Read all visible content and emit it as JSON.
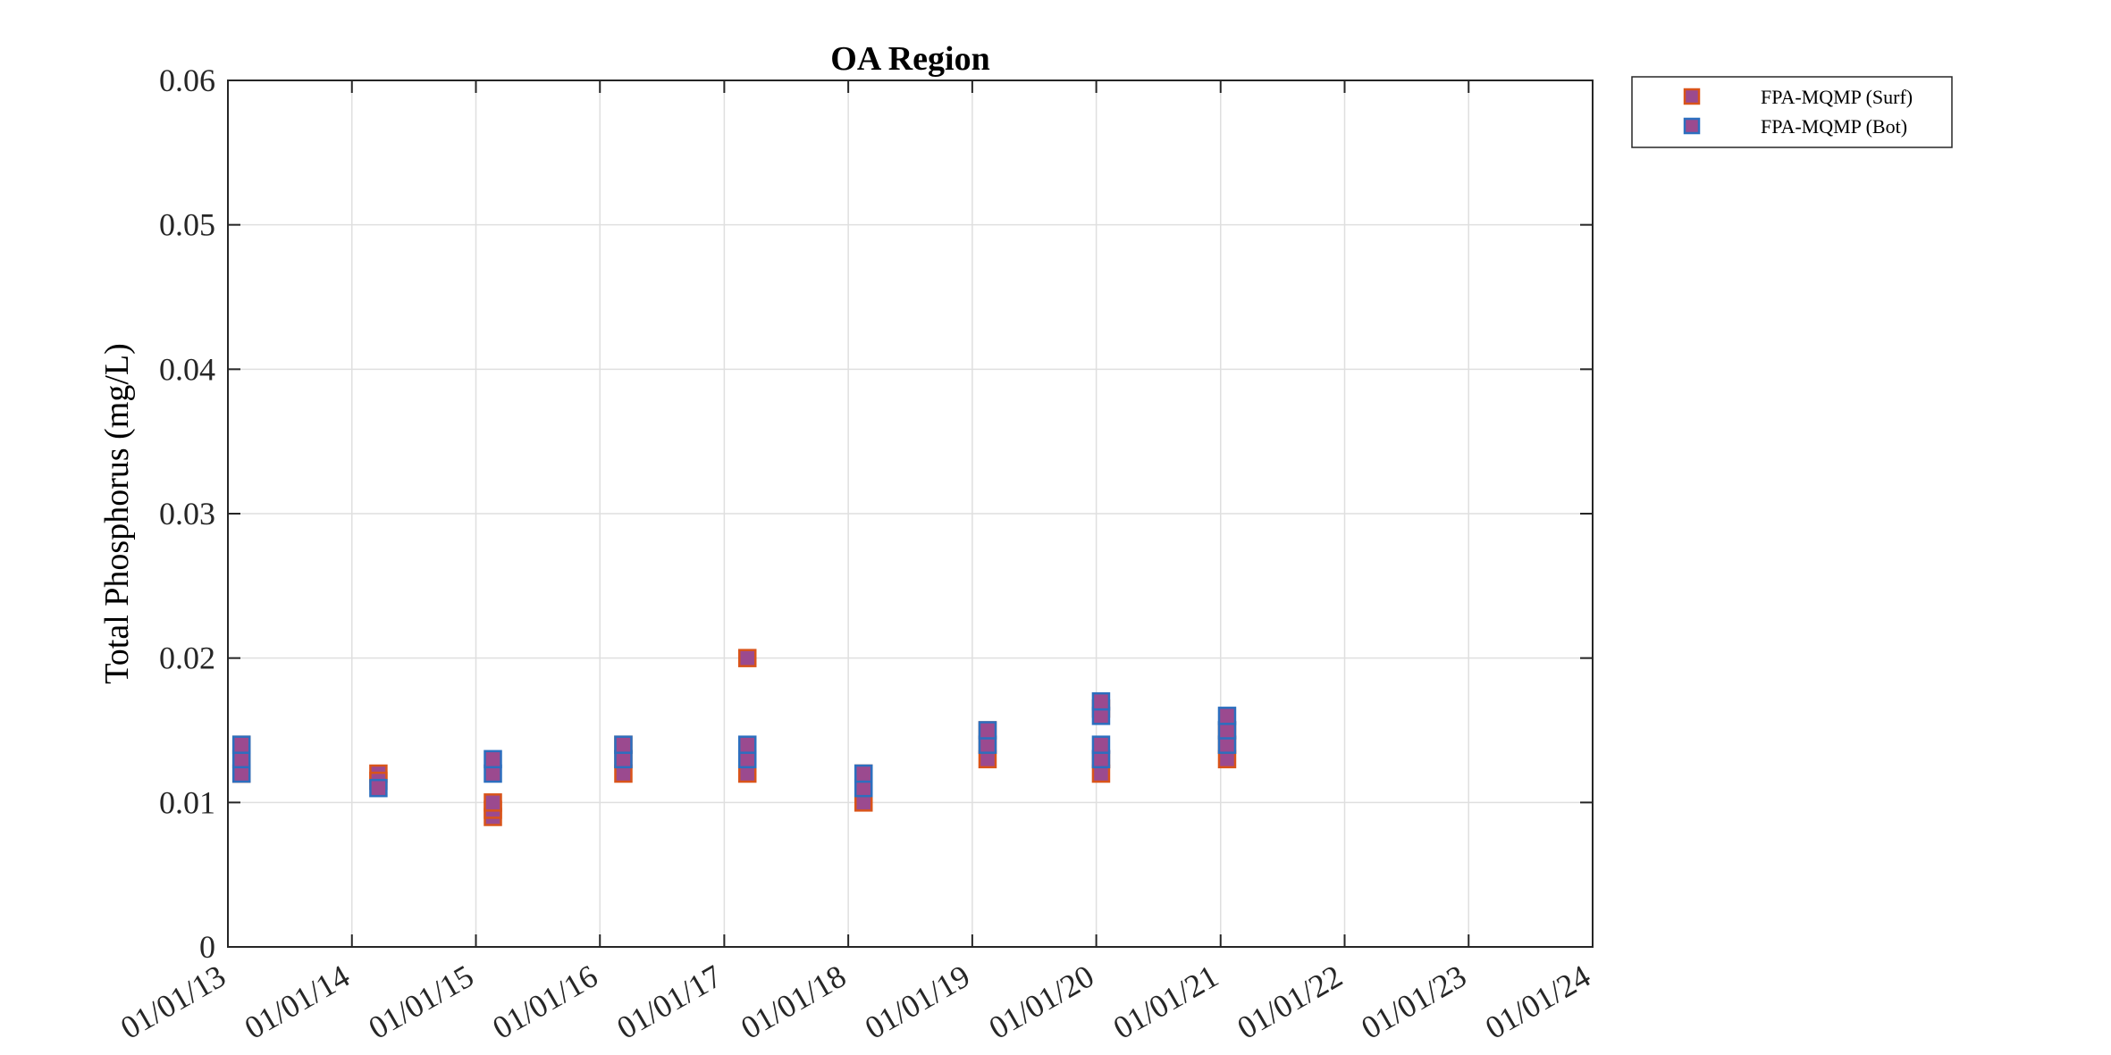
{
  "chart_data": {
    "type": "scatter",
    "title": "OA Region",
    "ylabel": "Total Phosphorus (mg/L)",
    "xlabel": "",
    "ylim": [
      0,
      0.06
    ],
    "yticks": [
      0,
      0.01,
      0.02,
      0.03,
      0.04,
      0.05,
      0.06
    ],
    "ytick_labels": [
      "0",
      "0.01",
      "0.02",
      "0.03",
      "0.04",
      "0.05",
      "0.06"
    ],
    "xlim": [
      "2013-01-01",
      "2024-01-01"
    ],
    "xticks": [
      "2013-01-01",
      "2014-01-01",
      "2015-01-01",
      "2016-01-01",
      "2017-01-01",
      "2018-01-01",
      "2019-01-01",
      "2020-01-01",
      "2021-01-01",
      "2022-01-01",
      "2023-01-01",
      "2024-01-01"
    ],
    "xtick_labels": [
      "01/01/13",
      "01/01/14",
      "01/01/15",
      "01/01/16",
      "01/01/17",
      "01/01/18",
      "01/01/19",
      "01/01/20",
      "01/01/21",
      "01/01/22",
      "01/01/23",
      "01/01/24"
    ],
    "grid": true,
    "legend_position": "outside-top-right",
    "series": [
      {
        "name": "FPA-MQMP (Surf)",
        "face_color": "#9b4a8f",
        "edge_color": "#d9541a",
        "points": [
          {
            "x": "2013-02-10",
            "y": 0.012
          },
          {
            "x": "2013-02-10",
            "y": 0.013
          },
          {
            "x": "2013-02-10",
            "y": 0.014
          },
          {
            "x": "2014-03-20",
            "y": 0.012
          },
          {
            "x": "2014-03-20",
            "y": 0.0115
          },
          {
            "x": "2015-02-20",
            "y": 0.009
          },
          {
            "x": "2015-02-20",
            "y": 0.0095
          },
          {
            "x": "2015-02-20",
            "y": 0.01
          },
          {
            "x": "2016-03-10",
            "y": 0.012
          },
          {
            "x": "2016-03-10",
            "y": 0.013
          },
          {
            "x": "2016-03-10",
            "y": 0.014
          },
          {
            "x": "2017-03-10",
            "y": 0.02
          },
          {
            "x": "2017-03-10",
            "y": 0.012
          },
          {
            "x": "2017-03-10",
            "y": 0.013
          },
          {
            "x": "2018-02-15",
            "y": 0.01
          },
          {
            "x": "2018-02-15",
            "y": 0.011
          },
          {
            "x": "2018-02-15",
            "y": 0.012
          },
          {
            "x": "2019-02-15",
            "y": 0.013
          },
          {
            "x": "2019-02-15",
            "y": 0.014
          },
          {
            "x": "2019-02-15",
            "y": 0.015
          },
          {
            "x": "2020-01-15",
            "y": 0.012
          },
          {
            "x": "2020-01-15",
            "y": 0.013
          },
          {
            "x": "2020-01-15",
            "y": 0.0165
          },
          {
            "x": "2021-01-20",
            "y": 0.013
          },
          {
            "x": "2021-01-20",
            "y": 0.014
          },
          {
            "x": "2021-01-20",
            "y": 0.015
          }
        ]
      },
      {
        "name": "FPA-MQMP (Bot)",
        "face_color": "#9b4a8f",
        "edge_color": "#2c6fbf",
        "points": [
          {
            "x": "2013-02-10",
            "y": 0.012
          },
          {
            "x": "2013-02-10",
            "y": 0.013
          },
          {
            "x": "2013-02-10",
            "y": 0.014
          },
          {
            "x": "2014-03-20",
            "y": 0.011
          },
          {
            "x": "2015-02-20",
            "y": 0.012
          },
          {
            "x": "2015-02-20",
            "y": 0.013
          },
          {
            "x": "2016-03-10",
            "y": 0.013
          },
          {
            "x": "2016-03-10",
            "y": 0.014
          },
          {
            "x": "2017-03-10",
            "y": 0.013
          },
          {
            "x": "2017-03-10",
            "y": 0.014
          },
          {
            "x": "2018-02-15",
            "y": 0.011
          },
          {
            "x": "2018-02-15",
            "y": 0.012
          },
          {
            "x": "2019-02-15",
            "y": 0.014
          },
          {
            "x": "2019-02-15",
            "y": 0.015
          },
          {
            "x": "2020-01-15",
            "y": 0.013
          },
          {
            "x": "2020-01-15",
            "y": 0.014
          },
          {
            "x": "2020-01-15",
            "y": 0.016
          },
          {
            "x": "2020-01-15",
            "y": 0.017
          },
          {
            "x": "2021-01-20",
            "y": 0.014
          },
          {
            "x": "2021-01-20",
            "y": 0.015
          },
          {
            "x": "2021-01-20",
            "y": 0.016
          }
        ]
      }
    ]
  }
}
